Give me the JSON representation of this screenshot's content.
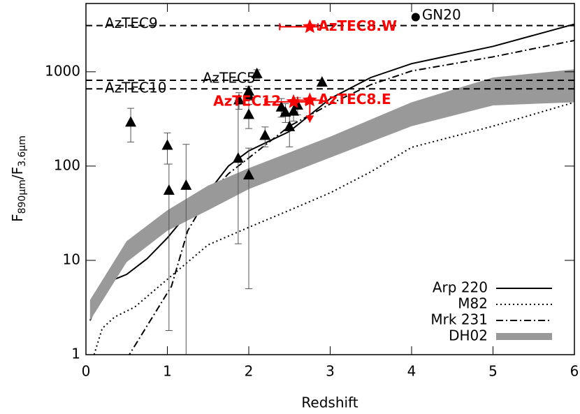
{
  "chart_data": {
    "type": "line",
    "xlabel": "Redshift",
    "ylabel_parts": [
      "F",
      "890μm",
      "/F",
      "3.6μm"
    ],
    "xlim": [
      0,
      6
    ],
    "ylim": [
      1,
      5300
    ],
    "log_y": true,
    "xticks": [
      0,
      1,
      2,
      3,
      4,
      5,
      6
    ],
    "yticks": [
      1,
      10,
      100,
      1000
    ],
    "hlines": [
      {
        "label": "AzTEC9",
        "value": 3090
      },
      {
        "label": "AzTEC5",
        "value": 813
      },
      {
        "label": "AzTEC10",
        "value": 660
      }
    ],
    "series": [
      {
        "name": "Arp 220",
        "style": "solid",
        "color": "#000000",
        "x": [
          0.05,
          0.25,
          0.5,
          0.75,
          1,
          1.25,
          1.5,
          1.75,
          2,
          2.5,
          3,
          3.5,
          4,
          5,
          6
        ],
        "values": [
          2.3,
          5.8,
          7.1,
          10.4,
          17.3,
          31.5,
          52.6,
          100,
          145,
          233,
          520,
          870,
          1220,
          1860,
          3200
        ]
      },
      {
        "name": "M82",
        "style": "dotted",
        "color": "#000000",
        "x": [
          0.1,
          0.2,
          0.35,
          0.6,
          1,
          1.5,
          2,
          2.5,
          3,
          3.5,
          4,
          5,
          6
        ],
        "values": [
          1,
          1.9,
          2.5,
          3.2,
          6.3,
          14.6,
          22.4,
          34,
          52,
          87,
          158,
          265,
          475
        ]
      },
      {
        "name": "Mrk 231",
        "style": "dashdot",
        "color": "#000000",
        "x": [
          0.5,
          1.05,
          1.25,
          1.5,
          1.75,
          2,
          2.5,
          3,
          3.5,
          4,
          5,
          6
        ],
        "values": [
          0.9,
          5.3,
          20.6,
          48,
          83,
          122,
          265,
          455,
          730,
          1020,
          1440,
          2150
        ]
      },
      {
        "name": "DH02",
        "style": "band",
        "color": "#999999",
        "x": [
          0.05,
          0.5,
          1,
          1.5,
          2,
          3,
          4,
          5,
          6
        ],
        "lower": [
          2.3,
          9.6,
          20.6,
          34,
          57,
          123,
          265,
          440,
          475
        ],
        "upper": [
          3.8,
          16,
          34,
          62,
          95,
          205,
          475,
          870,
          1060
        ]
      }
    ],
    "points": [
      {
        "marker": "triangle",
        "color": "#000000",
        "x": [
          0.55,
          1.0,
          1.02,
          1.23,
          1.87,
          1.88,
          2.0,
          2.0,
          2.0,
          2.0,
          2.1,
          2.2,
          2.4,
          2.45,
          2.5,
          2.55,
          2.6,
          2.9
        ],
        "values": [
          290,
          165,
          55,
          62,
          120,
          500,
          620,
          560,
          350,
          80,
          950,
          210,
          420,
          370,
          260,
          380,
          440,
          770
        ],
        "errors": [
          [
            180,
            410
          ],
          [
            105,
            225
          ],
          [
            1.8,
            105
          ],
          [
            1,
            170
          ],
          [
            15,
            500
          ],
          [
            400,
            600
          ],
          [
            500,
            700
          ],
          [
            450,
            650
          ],
          [
            250,
            450
          ],
          [
            5,
            155
          ],
          [
            850,
            1050
          ],
          [
            160,
            260
          ],
          [
            330,
            520
          ],
          [
            290,
            460
          ],
          [
            160,
            360
          ],
          [
            300,
            460
          ],
          [
            350,
            530
          ],
          [
            null,
            null
          ]
        ]
      },
      {
        "marker": "circle",
        "color": "#000000",
        "x": [
          4.05
        ],
        "values": [
          3800
        ],
        "labels": [
          "GN20"
        ]
      },
      {
        "marker": "star",
        "color": "#ff0000",
        "x": [
          2.75,
          2.55,
          2.75
        ],
        "values": [
          3000,
          480,
          500
        ],
        "labels": [
          "AzTEC8.W",
          "AzTEC12",
          "AzTEC8.E"
        ],
        "xerrors": [
          [
            2.38,
            2.85
          ],
          [
            2.2,
            2.7
          ],
          [
            2.6,
            2.9
          ]
        ],
        "arrow_to": [
          null,
          null,
          290
        ]
      }
    ],
    "legend": "lower right"
  }
}
